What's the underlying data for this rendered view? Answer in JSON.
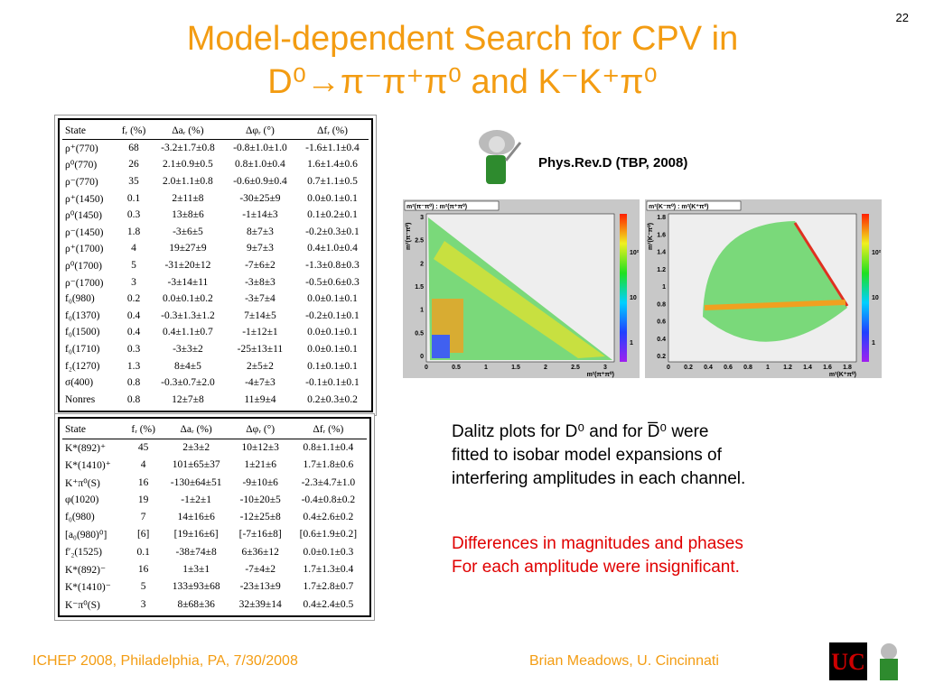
{
  "page_number": "22",
  "title": {
    "line1": "Model-dependent Search for CPV in",
    "line2": "D⁰→π⁻π⁺π⁰ and K⁻K⁺π⁰"
  },
  "reference": "Phys.Rev.D (TBP, 2008)",
  "table1": {
    "header": [
      "State",
      "fᵣ (%)",
      "Δaᵣ (%)",
      "Δφᵣ (°)",
      "Δfᵣ (%)"
    ],
    "rows": [
      [
        "ρ⁺(770)",
        "68",
        "-3.2±1.7±0.8",
        "-0.8±1.0±1.0",
        "-1.6±1.1±0.4"
      ],
      [
        "ρ⁰(770)",
        "26",
        "2.1±0.9±0.5",
        "0.8±1.0±0.4",
        "1.6±1.4±0.6"
      ],
      [
        "ρ⁻(770)",
        "35",
        "2.0±1.1±0.8",
        "-0.6±0.9±0.4",
        "0.7±1.1±0.5"
      ],
      [
        "ρ⁺(1450)",
        "0.1",
        "2±11±8",
        "-30±25±9",
        "0.0±0.1±0.1"
      ],
      [
        "ρ⁰(1450)",
        "0.3",
        "13±8±6",
        "-1±14±3",
        "0.1±0.2±0.1"
      ],
      [
        "ρ⁻(1450)",
        "1.8",
        "-3±6±5",
        "8±7±3",
        "-0.2±0.3±0.1"
      ],
      [
        "ρ⁺(1700)",
        "4",
        "19±27±9",
        "9±7±3",
        "0.4±1.0±0.4"
      ],
      [
        "ρ⁰(1700)",
        "5",
        "-31±20±12",
        "-7±6±2",
        "-1.3±0.8±0.3"
      ],
      [
        "ρ⁻(1700)",
        "3",
        "-3±14±11",
        "-3±8±3",
        "-0.5±0.6±0.3"
      ],
      [
        "f₀(980)",
        "0.2",
        "0.0±0.1±0.2",
        "-3±7±4",
        "0.0±0.1±0.1"
      ],
      [
        "f₀(1370)",
        "0.4",
        "-0.3±1.3±1.2",
        "7±14±5",
        "-0.2±0.1±0.1"
      ],
      [
        "f₀(1500)",
        "0.4",
        "0.4±1.1±0.7",
        "-1±12±1",
        "0.0±0.1±0.1"
      ],
      [
        "f₀(1710)",
        "0.3",
        "-3±3±2",
        "-25±13±11",
        "0.0±0.1±0.1"
      ],
      [
        "f₂(1270)",
        "1.3",
        "8±4±5",
        "2±5±2",
        "0.1±0.1±0.1"
      ],
      [
        "σ(400)",
        "0.8",
        "-0.3±0.7±2.0",
        "-4±7±3",
        "-0.1±0.1±0.1"
      ],
      [
        "Nonres",
        "0.8",
        "12±7±8",
        "11±9±4",
        "0.2±0.3±0.2"
      ]
    ]
  },
  "table2": {
    "header": [
      "State",
      "fᵣ (%)",
      "Δaᵣ (%)",
      "Δφᵣ (°)",
      "Δfᵣ (%)"
    ],
    "rows": [
      [
        "K*(892)⁺",
        "45",
        "2±3±2",
        "10±12±3",
        "0.8±1.1±0.4"
      ],
      [
        "K*(1410)⁺",
        "4",
        "101±65±37",
        "1±21±6",
        "1.7±1.8±0.6"
      ],
      [
        "K⁺π⁰(S)",
        "16",
        "-130±64±51",
        "-9±10±6",
        "-2.3±4.7±1.0"
      ],
      [
        "φ(1020)",
        "19",
        "-1±2±1",
        "-10±20±5",
        "-0.4±0.8±0.2"
      ],
      [
        "f₀(980)",
        "7",
        "14±16±6",
        "-12±25±8",
        "0.4±2.6±0.2"
      ],
      [
        "[a₀(980)⁰]",
        "[6]",
        "[19±16±6]",
        "[-7±16±8]",
        "[0.6±1.9±0.2]"
      ],
      [
        "f′₂(1525)",
        "0.1",
        "-38±74±8",
        "6±36±12",
        "0.0±0.1±0.3"
      ],
      [
        "K*(892)⁻",
        "16",
        "1±3±1",
        "-7±4±2",
        "1.7±1.3±0.4"
      ],
      [
        "K*(1410)⁻",
        "5",
        "133±93±68",
        "-23±13±9",
        "1.7±2.8±0.7"
      ],
      [
        "K⁻π⁰(S)",
        "3",
        "8±68±36",
        "32±39±14",
        "0.4±2.4±0.5"
      ]
    ]
  },
  "plots": [
    {
      "title": "m²(π⁻π⁰) : m²(π⁺π⁰)",
      "xlabel": "m²(π⁺π⁰)",
      "ylabel": "m²(π⁻π⁰)",
      "xticks": [
        "0",
        "0.5",
        "1",
        "1.5",
        "2",
        "2.5",
        "3"
      ],
      "yticks": [
        "0",
        "0.5",
        "1",
        "1.5",
        "2",
        "2.5",
        "3"
      ],
      "zticks": [
        "10²",
        "10",
        "1"
      ]
    },
    {
      "title": "m²(K⁻π⁰) : m²(K⁺π⁰)",
      "xlabel": "m²(K⁺π⁰)",
      "ylabel": "m²(K⁻π⁰)",
      "xticks": [
        "0",
        "0.2",
        "0.4",
        "0.6",
        "0.8",
        "1",
        "1.2",
        "1.4",
        "1.6",
        "1.8"
      ],
      "yticks": [
        "0.2",
        "0.4",
        "0.6",
        "0.8",
        "1",
        "1.2",
        "1.4",
        "1.6",
        "1.8"
      ],
      "zticks": [
        "10²",
        "10",
        "1"
      ]
    }
  ],
  "body": {
    "lines": [
      "Dalitz plots for D⁰ and for D̅⁰ were",
      "fitted to isobar model expansions of",
      "interfering amplitudes in each channel."
    ],
    "red_lines": [
      "Differences in magnitudes and phases",
      "For each amplitude were insignificant."
    ]
  },
  "footer": {
    "left": "ICHEP 2008, Philadelphia, PA, 7/30/2008",
    "right": "Brian Meadows, U. Cincinnati"
  }
}
